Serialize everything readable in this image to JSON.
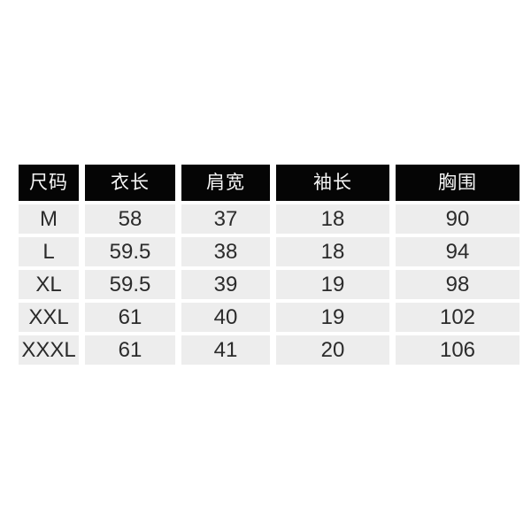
{
  "chart_data": {
    "type": "table",
    "columns": [
      "尺码",
      "衣长",
      "肩宽",
      "袖长",
      "胸围"
    ],
    "rows": [
      [
        "M",
        "58",
        "37",
        "18",
        "90"
      ],
      [
        "L",
        "59.5",
        "38",
        "18",
        "94"
      ],
      [
        "XL",
        "59.5",
        "39",
        "19",
        "98"
      ],
      [
        "XXL",
        "61",
        "40",
        "19",
        "102"
      ],
      [
        "XXXL",
        "61",
        "41",
        "20",
        "106"
      ]
    ],
    "layout_hints": {
      "header_style": "black background, white text",
      "body_style": "light gray cells separated by white gutters",
      "grid": "off"
    }
  },
  "colors": {
    "page_bg": "#ffffff",
    "header_bg": "#050505",
    "header_text": "#f7f7f7",
    "row_bg": "#ededed",
    "row_text": "#2b2b2b"
  }
}
